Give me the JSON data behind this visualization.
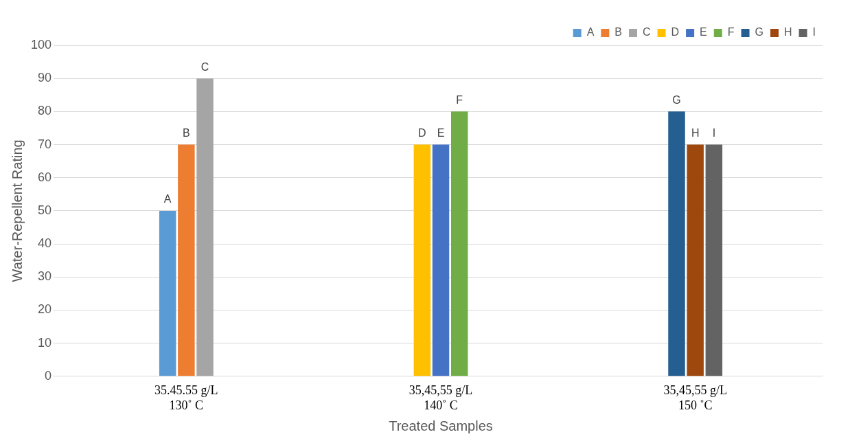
{
  "chart_data": {
    "type": "bar",
    "xlabel": "Treated Samples",
    "ylabel": "Water-Repellent Rating",
    "categories": [
      "35.45.55 g/L\n130˚ C",
      "35,45,55 g/L\n140˚ C",
      "35,45,55 g/L\n150 ˚C"
    ],
    "series": [
      {
        "name": "A",
        "color": "#5b9bd5",
        "values": [
          50,
          null,
          null
        ]
      },
      {
        "name": "B",
        "color": "#ed7d31",
        "values": [
          70,
          null,
          null
        ]
      },
      {
        "name": "C",
        "color": "#a5a5a5",
        "values": [
          90,
          null,
          null
        ]
      },
      {
        "name": "D",
        "color": "#ffc000",
        "values": [
          null,
          70,
          null
        ]
      },
      {
        "name": "E",
        "color": "#4472c4",
        "values": [
          null,
          70,
          null
        ]
      },
      {
        "name": "F",
        "color": "#70ad47",
        "values": [
          null,
          80,
          null
        ]
      },
      {
        "name": "G",
        "color": "#255e91",
        "values": [
          null,
          null,
          80
        ]
      },
      {
        "name": "H",
        "color": "#9e480e",
        "values": [
          null,
          null,
          70
        ]
      },
      {
        "name": "I",
        "color": "#636363",
        "values": [
          null,
          null,
          70
        ]
      }
    ],
    "ylim": [
      0,
      100
    ],
    "yticks": [
      0,
      10,
      20,
      30,
      40,
      50,
      60,
      70,
      80,
      90,
      100
    ],
    "grid": "y",
    "legend": "top right"
  }
}
